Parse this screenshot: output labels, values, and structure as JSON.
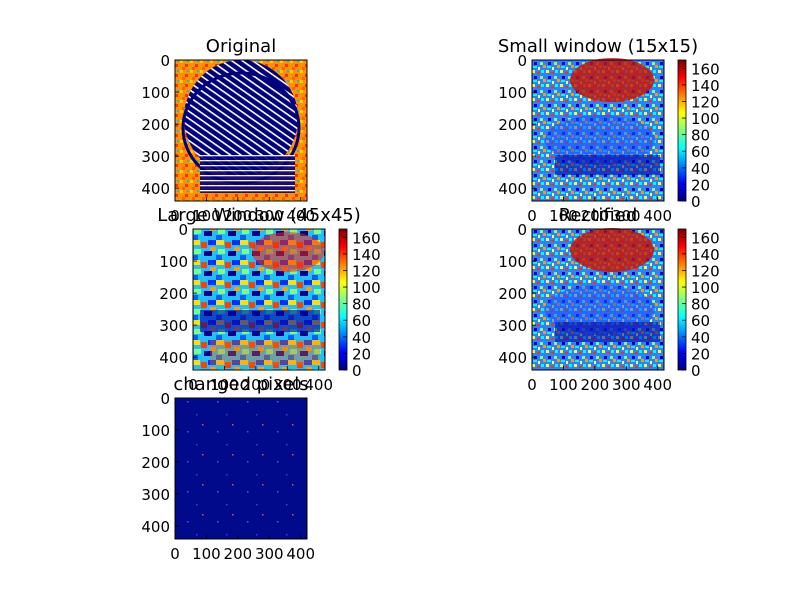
{
  "chart_data": [
    {
      "type": "heatmap",
      "title": "Original",
      "x_ticks": [
        "0",
        "100",
        "200",
        "300",
        "400"
      ],
      "y_ticks": [
        "0",
        "100",
        "200",
        "300",
        "400"
      ],
      "xlim": [
        0,
        420
      ],
      "ylim": [
        0,
        440
      ],
      "image_content": "fingerprint on warm background",
      "colorbar": false
    },
    {
      "type": "heatmap",
      "title": "Small window (15x15)",
      "x_ticks": [
        "0",
        "100",
        "200",
        "300",
        "400"
      ],
      "y_ticks": [
        "0",
        "100",
        "200",
        "300",
        "400"
      ],
      "xlim": [
        0,
        420
      ],
      "ylim": [
        0,
        440
      ],
      "image_content": "ridge orientation, small window",
      "colorbar": true,
      "colorbar_ticks": [
        "0",
        "20",
        "40",
        "60",
        "80",
        "100",
        "120",
        "140",
        "160"
      ],
      "colorbar_range": [
        0,
        170
      ]
    },
    {
      "type": "heatmap",
      "title": "Large Window (45x45)",
      "x_ticks": [
        "0",
        "100",
        "200",
        "300",
        "400"
      ],
      "y_ticks": [
        "0",
        "100",
        "200",
        "300",
        "400"
      ],
      "xlim": [
        0,
        420
      ],
      "ylim": [
        0,
        440
      ],
      "image_content": "ridge orientation, large window",
      "colorbar": true,
      "colorbar_ticks": [
        "0",
        "20",
        "40",
        "60",
        "80",
        "100",
        "120",
        "140",
        "160"
      ],
      "colorbar_range": [
        0,
        170
      ]
    },
    {
      "type": "heatmap",
      "title": "Rectified",
      "x_ticks": [
        "0",
        "100",
        "200",
        "300",
        "400"
      ],
      "y_ticks": [
        "0",
        "100",
        "200",
        "300",
        "400"
      ],
      "xlim": [
        0,
        420
      ],
      "ylim": [
        0,
        440
      ],
      "image_content": "rectified orientation",
      "colorbar": true,
      "colorbar_ticks": [
        "0",
        "20",
        "40",
        "60",
        "80",
        "100",
        "120",
        "140",
        "160"
      ],
      "colorbar_range": [
        0,
        170
      ]
    },
    {
      "type": "heatmap",
      "title": "changed pixels",
      "x_ticks": [
        "0",
        "100",
        "200",
        "300",
        "400"
      ],
      "y_ticks": [
        "0",
        "100",
        "200",
        "300",
        "400"
      ],
      "xlim": [
        0,
        420
      ],
      "ylim": [
        0,
        440
      ],
      "image_content": "mostly zero, dark blue",
      "colorbar": false
    }
  ],
  "colors": {
    "jet_low": "#00007f",
    "jet_mid": "#7fff7f",
    "jet_high": "#7f0000",
    "changed_bg": "#000a8a"
  }
}
